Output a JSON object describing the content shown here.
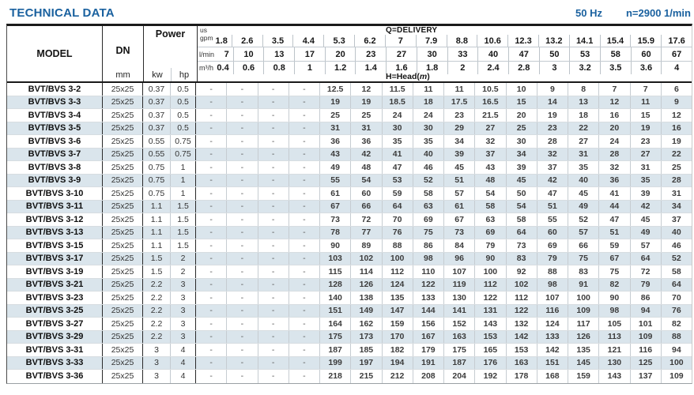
{
  "page": {
    "title": "TECHNICAL DATA",
    "frequency": "50 Hz",
    "speed": "n=2900 1/min",
    "accent_color": "#1a619f",
    "alt_row_color": "#dae5ec"
  },
  "table": {
    "headers": {
      "model": "MODEL",
      "dn": "DN",
      "dn_unit": "mm",
      "power": "Power",
      "power_kw": "kw",
      "power_hp": "hp",
      "q_delivery": "Q=DELIVERY",
      "h_head_pre": "H=Head(",
      "h_head_m": "m",
      "h_head_post": ")"
    },
    "flow_rows": [
      {
        "unit_top": "us",
        "unit": "gpm",
        "values": [
          "1.8",
          "2.6",
          "3.5",
          "4.4",
          "5.3",
          "6.2",
          "7",
          "7.9",
          "8.8",
          "10.6",
          "12.3",
          "13.2",
          "14.1",
          "15.4",
          "15.9",
          "17.6"
        ]
      },
      {
        "unit": "l/min",
        "values": [
          "7",
          "10",
          "13",
          "17",
          "20",
          "23",
          "27",
          "30",
          "33",
          "40",
          "47",
          "50",
          "53",
          "58",
          "60",
          "67"
        ]
      },
      {
        "unit": "m³/h",
        "values": [
          "0.4",
          "0.6",
          "0.8",
          "1",
          "1.2",
          "1.4",
          "1.6",
          "1.8",
          "2",
          "2.4",
          "2.8",
          "3",
          "3.2",
          "3.5",
          "3.6",
          "4"
        ]
      }
    ],
    "rows": [
      {
        "model": "BVT/BVS 3-2",
        "dn": "25x25",
        "kw": "0.37",
        "hp": "0.5",
        "head": [
          "-",
          "-",
          "-",
          "-",
          "12.5",
          "12",
          "11.5",
          "11",
          "11",
          "10.5",
          "10",
          "9",
          "8",
          "7",
          "7",
          "6"
        ]
      },
      {
        "model": "BVT/BVS 3-3",
        "dn": "25x25",
        "kw": "0.37",
        "hp": "0.5",
        "head": [
          "-",
          "-",
          "-",
          "-",
          "19",
          "19",
          "18.5",
          "18",
          "17.5",
          "16.5",
          "15",
          "14",
          "13",
          "12",
          "11",
          "9"
        ]
      },
      {
        "model": "BVT/BVS 3-4",
        "dn": "25x25",
        "kw": "0.37",
        "hp": "0.5",
        "head": [
          "-",
          "-",
          "-",
          "-",
          "25",
          "25",
          "24",
          "24",
          "23",
          "21.5",
          "20",
          "19",
          "18",
          "16",
          "15",
          "12"
        ]
      },
      {
        "model": "BVT/BVS 3-5",
        "dn": "25x25",
        "kw": "0.37",
        "hp": "0.5",
        "head": [
          "-",
          "-",
          "-",
          "-",
          "31",
          "31",
          "30",
          "30",
          "29",
          "27",
          "25",
          "23",
          "22",
          "20",
          "19",
          "16"
        ]
      },
      {
        "model": "BVT/BVS 3-6",
        "dn": "25x25",
        "kw": "0.55",
        "hp": "0.75",
        "head": [
          "-",
          "-",
          "-",
          "-",
          "36",
          "36",
          "35",
          "35",
          "34",
          "32",
          "30",
          "28",
          "27",
          "24",
          "23",
          "19"
        ]
      },
      {
        "model": "BVT/BVS 3-7",
        "dn": "25x25",
        "kw": "0.55",
        "hp": "0.75",
        "head": [
          "-",
          "-",
          "-",
          "-",
          "43",
          "42",
          "41",
          "40",
          "39",
          "37",
          "34",
          "32",
          "31",
          "28",
          "27",
          "22"
        ]
      },
      {
        "model": "BVT/BVS 3-8",
        "dn": "25x25",
        "kw": "0.75",
        "hp": "1",
        "head": [
          "-",
          "-",
          "-",
          "-",
          "49",
          "48",
          "47",
          "46",
          "45",
          "43",
          "39",
          "37",
          "35",
          "32",
          "31",
          "25"
        ]
      },
      {
        "model": "BVT/BVS 3-9",
        "dn": "25x25",
        "kw": "0.75",
        "hp": "1",
        "head": [
          "-",
          "-",
          "-",
          "-",
          "55",
          "54",
          "53",
          "52",
          "51",
          "48",
          "45",
          "42",
          "40",
          "36",
          "35",
          "28"
        ]
      },
      {
        "model": "BVT/BVS 3-10",
        "dn": "25x25",
        "kw": "0.75",
        "hp": "1",
        "head": [
          "-",
          "-",
          "-",
          "-",
          "61",
          "60",
          "59",
          "58",
          "57",
          "54",
          "50",
          "47",
          "45",
          "41",
          "39",
          "31"
        ]
      },
      {
        "model": "BVT/BVS 3-11",
        "dn": "25x25",
        "kw": "1.1",
        "hp": "1.5",
        "head": [
          "-",
          "-",
          "-",
          "-",
          "67",
          "66",
          "64",
          "63",
          "61",
          "58",
          "54",
          "51",
          "49",
          "44",
          "42",
          "34"
        ]
      },
      {
        "model": "BVT/BVS 3-12",
        "dn": "25x25",
        "kw": "1.1",
        "hp": "1.5",
        "head": [
          "-",
          "-",
          "-",
          "-",
          "73",
          "72",
          "70",
          "69",
          "67",
          "63",
          "58",
          "55",
          "52",
          "47",
          "45",
          "37"
        ]
      },
      {
        "model": "BVT/BVS 3-13",
        "dn": "25x25",
        "kw": "1.1",
        "hp": "1.5",
        "head": [
          "-",
          "-",
          "-",
          "-",
          "78",
          "77",
          "76",
          "75",
          "73",
          "69",
          "64",
          "60",
          "57",
          "51",
          "49",
          "40"
        ]
      },
      {
        "model": "BVT/BVS 3-15",
        "dn": "25x25",
        "kw": "1.1",
        "hp": "1.5",
        "head": [
          "-",
          "-",
          "-",
          "-",
          "90",
          "89",
          "88",
          "86",
          "84",
          "79",
          "73",
          "69",
          "66",
          "59",
          "57",
          "46"
        ]
      },
      {
        "model": "BVT/BVS 3-17",
        "dn": "25x25",
        "kw": "1.5",
        "hp": "2",
        "head": [
          "-",
          "-",
          "-",
          "-",
          "103",
          "102",
          "100",
          "98",
          "96",
          "90",
          "83",
          "79",
          "75",
          "67",
          "64",
          "52"
        ]
      },
      {
        "model": "BVT/BVS 3-19",
        "dn": "25x25",
        "kw": "1.5",
        "hp": "2",
        "head": [
          "-",
          "-",
          "-",
          "-",
          "115",
          "114",
          "112",
          "110",
          "107",
          "100",
          "92",
          "88",
          "83",
          "75",
          "72",
          "58"
        ]
      },
      {
        "model": "BVT/BVS 3-21",
        "dn": "25x25",
        "kw": "2.2",
        "hp": "3",
        "head": [
          "-",
          "-",
          "-",
          "-",
          "128",
          "126",
          "124",
          "122",
          "119",
          "112",
          "102",
          "98",
          "91",
          "82",
          "79",
          "64"
        ]
      },
      {
        "model": "BVT/BVS 3-23",
        "dn": "25x25",
        "kw": "2.2",
        "hp": "3",
        "head": [
          "-",
          "-",
          "-",
          "-",
          "140",
          "138",
          "135",
          "133",
          "130",
          "122",
          "112",
          "107",
          "100",
          "90",
          "86",
          "70"
        ]
      },
      {
        "model": "BVT/BVS 3-25",
        "dn": "25x25",
        "kw": "2.2",
        "hp": "3",
        "head": [
          "-",
          "-",
          "-",
          "-",
          "151",
          "149",
          "147",
          "144",
          "141",
          "131",
          "122",
          "116",
          "109",
          "98",
          "94",
          "76"
        ]
      },
      {
        "model": "BVT/BVS 3-27",
        "dn": "25x25",
        "kw": "2.2",
        "hp": "3",
        "head": [
          "-",
          "-",
          "-",
          "-",
          "164",
          "162",
          "159",
          "156",
          "152",
          "143",
          "132",
          "124",
          "117",
          "105",
          "101",
          "82"
        ]
      },
      {
        "model": "BVT/BVS 3-29",
        "dn": "25x25",
        "kw": "2.2",
        "hp": "3",
        "head": [
          "-",
          "-",
          "-",
          "-",
          "175",
          "173",
          "170",
          "167",
          "163",
          "153",
          "142",
          "133",
          "126",
          "113",
          "109",
          "88"
        ]
      },
      {
        "model": "BVT/BVS 3-31",
        "dn": "25x25",
        "kw": "3",
        "hp": "4",
        "head": [
          "-",
          "-",
          "-",
          "-",
          "187",
          "185",
          "182",
          "179",
          "175",
          "165",
          "153",
          "142",
          "135",
          "121",
          "116",
          "94"
        ]
      },
      {
        "model": "BVT/BVS 3-33",
        "dn": "25x25",
        "kw": "3",
        "hp": "4",
        "head": [
          "-",
          "-",
          "-",
          "-",
          "199",
          "197",
          "194",
          "191",
          "187",
          "176",
          "163",
          "151",
          "145",
          "130",
          "125",
          "100"
        ]
      },
      {
        "model": "BVT/BVS 3-36",
        "dn": "25x25",
        "kw": "3",
        "hp": "4",
        "head": [
          "-",
          "-",
          "-",
          "-",
          "218",
          "215",
          "212",
          "208",
          "204",
          "192",
          "178",
          "168",
          "159",
          "143",
          "137",
          "109"
        ]
      }
    ]
  }
}
